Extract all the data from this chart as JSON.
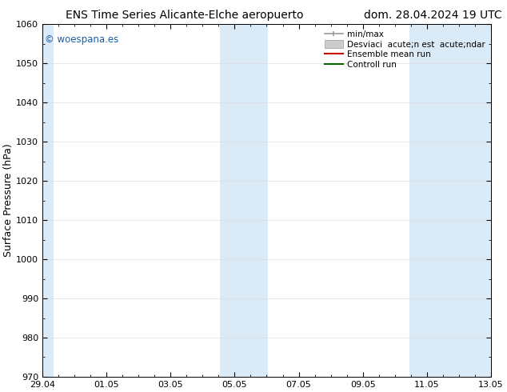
{
  "title_left": "ENS Time Series Alicante-Elche aeropuerto",
  "title_right": "dom. 28.04.2024 19 UTC",
  "ylabel": "Surface Pressure (hPa)",
  "ylim": [
    970,
    1060
  ],
  "yticks": [
    970,
    980,
    990,
    1000,
    1010,
    1020,
    1030,
    1040,
    1050,
    1060
  ],
  "xtick_labels": [
    "29.04",
    "01.05",
    "03.05",
    "05.05",
    "07.05",
    "09.05",
    "11.05",
    "13.05"
  ],
  "xmin": 0.0,
  "xmax": 14.0,
  "xtick_positions": [
    0,
    2,
    4,
    6,
    8,
    10,
    12,
    14
  ],
  "shaded_bands": [
    {
      "xstart": -0.1,
      "xend": 0.35,
      "color": "#daeaf6"
    },
    {
      "xstart": 5.55,
      "xend": 7.05,
      "color": "#daeaf6"
    },
    {
      "xstart": 11.45,
      "xend": 14.1,
      "color": "#daeaf6"
    }
  ],
  "watermark_text": "© woespana.es",
  "watermark_color": "#1a5fa8",
  "legend_label_minmax": "min/max",
  "legend_label_desv": "Desviaci  acute;n est  acute;ndar",
  "legend_label_ensemble": "Ensemble mean run",
  "legend_label_control": "Controll run",
  "legend_color_minmax": "#999999",
  "legend_color_desv": "#cccccc",
  "legend_color_ensemble": "#cc0000",
  "legend_color_control": "#006600",
  "bg_color": "#ffffff",
  "plot_bg_color": "#ffffff",
  "title_fontsize": 10,
  "tick_fontsize": 8,
  "ylabel_fontsize": 9,
  "legend_fontsize": 7.5
}
